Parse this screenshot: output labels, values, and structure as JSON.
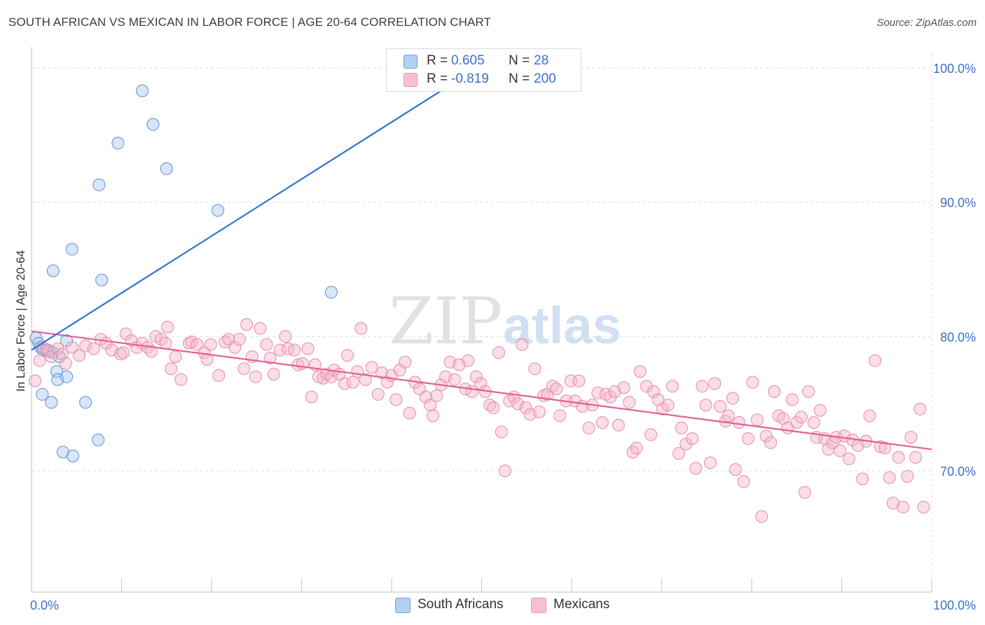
{
  "header": {
    "title": "SOUTH AFRICAN VS MEXICAN IN LABOR FORCE | AGE 20-64 CORRELATION CHART",
    "source": "Source: ZipAtlas.com"
  },
  "watermark": {
    "zip": "ZIP",
    "atlas": "atlas"
  },
  "legend_top": {
    "rows": [
      {
        "r_label": "R =",
        "r_value": "0.605",
        "n_label": "N =",
        "n_value": "28"
      },
      {
        "r_label": "R =",
        "r_value": "-0.819",
        "n_label": "N =",
        "n_value": "200"
      }
    ]
  },
  "legend_bottom": {
    "items": [
      {
        "label": "South Africans"
      },
      {
        "label": "Mexicans"
      }
    ]
  },
  "colors": {
    "south_africans_fill": "#aac8f0",
    "south_africans_stroke": "#5b8fd6",
    "south_africans_line": "#2f72d0",
    "mexicans_fill": "#f6b6ca",
    "mexicans_stroke": "#e58aa6",
    "mexicans_line": "#e0609a",
    "tick_label": "#3b6fcc",
    "grid": "#dddddd"
  },
  "chart_data": {
    "type": "scatter",
    "title": "SOUTH AFRICAN VS MEXICAN IN LABOR FORCE | AGE 20-64 CORRELATION CHART",
    "xlabel": "",
    "ylabel": "In Labor Force | Age 20-64",
    "xlim": [
      0,
      100
    ],
    "ylim": [
      60,
      102
    ],
    "x_tick_labels": [
      "0.0%",
      "100.0%"
    ],
    "y_ticks": [
      70,
      80,
      90,
      100
    ],
    "y_tick_labels": [
      "70.0%",
      "80.0%",
      "90.0%",
      "100.0%"
    ],
    "grid": true,
    "legend_position": "bottom",
    "series": [
      {
        "name": "South Africans",
        "points": [
          [
            0.5,
            79.9
          ],
          [
            0.8,
            79.5
          ],
          [
            1.0,
            79.2
          ],
          [
            1.3,
            79.0
          ],
          [
            1.6,
            79.0
          ],
          [
            2.0,
            78.9
          ],
          [
            2.4,
            78.8
          ],
          [
            3.1,
            78.5
          ],
          [
            3.9,
            79.7
          ],
          [
            1.2,
            75.7
          ],
          [
            2.2,
            75.1
          ],
          [
            2.8,
            77.4
          ],
          [
            2.9,
            76.8
          ],
          [
            3.9,
            77.0
          ],
          [
            3.5,
            71.4
          ],
          [
            4.6,
            71.1
          ],
          [
            6.0,
            75.1
          ],
          [
            7.4,
            72.3
          ],
          [
            2.4,
            84.9
          ],
          [
            4.5,
            86.5
          ],
          [
            7.8,
            84.2
          ],
          [
            7.5,
            91.3
          ],
          [
            9.6,
            94.4
          ],
          [
            12.3,
            98.3
          ],
          [
            13.5,
            95.8
          ],
          [
            15.0,
            92.5
          ],
          [
            20.7,
            89.4
          ],
          [
            33.3,
            83.3
          ]
        ],
        "trend": {
          "x": [
            0,
            49.5
          ],
          "y": [
            79.0,
            100.0
          ]
        },
        "r": 0.605,
        "n": 28
      },
      {
        "name": "Mexicans",
        "points": [
          [
            0.4,
            76.7
          ],
          [
            0.9,
            78.2
          ],
          [
            1.3,
            79.2
          ],
          [
            1.8,
            79.0
          ],
          [
            2.2,
            78.5
          ],
          [
            2.9,
            79.1
          ],
          [
            3.4,
            78.7
          ],
          [
            3.8,
            78.0
          ],
          [
            4.5,
            79.2
          ],
          [
            5.3,
            78.6
          ],
          [
            6.0,
            79.3
          ],
          [
            6.9,
            79.1
          ],
          [
            7.7,
            79.8
          ],
          [
            8.3,
            79.5
          ],
          [
            8.9,
            79.0
          ],
          [
            9.9,
            78.7
          ],
          [
            10.2,
            78.8
          ],
          [
            10.5,
            80.2
          ],
          [
            11.1,
            79.7
          ],
          [
            11.7,
            79.2
          ],
          [
            12.3,
            79.5
          ],
          [
            12.9,
            79.2
          ],
          [
            13.3,
            78.9
          ],
          [
            13.8,
            80.0
          ],
          [
            14.4,
            79.8
          ],
          [
            14.9,
            79.5
          ],
          [
            15.1,
            80.7
          ],
          [
            15.5,
            77.6
          ],
          [
            16.0,
            78.5
          ],
          [
            16.6,
            76.8
          ],
          [
            17.5,
            79.5
          ],
          [
            17.8,
            79.6
          ],
          [
            18.4,
            79.4
          ],
          [
            19.2,
            78.8
          ],
          [
            19.5,
            78.3
          ],
          [
            19.9,
            79.4
          ],
          [
            20.8,
            77.1
          ],
          [
            21.5,
            79.6
          ],
          [
            21.9,
            79.8
          ],
          [
            22.6,
            79.2
          ],
          [
            23.1,
            79.8
          ],
          [
            23.6,
            77.6
          ],
          [
            23.9,
            80.9
          ],
          [
            24.5,
            78.5
          ],
          [
            24.9,
            77.0
          ],
          [
            25.4,
            80.6
          ],
          [
            26.1,
            79.4
          ],
          [
            26.5,
            78.4
          ],
          [
            26.9,
            77.2
          ],
          [
            27.6,
            79.0
          ],
          [
            28.2,
            80.0
          ],
          [
            28.5,
            79.1
          ],
          [
            29.2,
            79.0
          ],
          [
            29.6,
            77.9
          ],
          [
            30.1,
            78.0
          ],
          [
            30.7,
            79.1
          ],
          [
            31.1,
            75.5
          ],
          [
            31.5,
            77.9
          ],
          [
            31.9,
            77.0
          ],
          [
            32.4,
            76.9
          ],
          [
            32.8,
            77.2
          ],
          [
            33.3,
            77.0
          ],
          [
            33.6,
            77.5
          ],
          [
            34.2,
            77.2
          ],
          [
            34.8,
            76.5
          ],
          [
            35.1,
            78.6
          ],
          [
            35.7,
            76.6
          ],
          [
            36.2,
            77.4
          ],
          [
            36.6,
            80.6
          ],
          [
            37.1,
            76.8
          ],
          [
            37.8,
            77.7
          ],
          [
            38.5,
            75.7
          ],
          [
            38.9,
            77.3
          ],
          [
            39.5,
            76.6
          ],
          [
            40.0,
            77.1
          ],
          [
            40.5,
            75.3
          ],
          [
            40.9,
            77.5
          ],
          [
            41.5,
            78.1
          ],
          [
            42.0,
            74.3
          ],
          [
            42.6,
            76.6
          ],
          [
            43.1,
            76.1
          ],
          [
            43.8,
            75.5
          ],
          [
            44.3,
            74.9
          ],
          [
            44.6,
            74.1
          ],
          [
            45.0,
            75.6
          ],
          [
            45.5,
            76.4
          ],
          [
            46.0,
            77.0
          ],
          [
            46.5,
            78.1
          ],
          [
            47.0,
            76.8
          ],
          [
            47.5,
            77.9
          ],
          [
            48.2,
            76.1
          ],
          [
            48.5,
            78.2
          ],
          [
            48.9,
            75.9
          ],
          [
            49.4,
            77.0
          ],
          [
            49.9,
            76.5
          ],
          [
            50.4,
            75.9
          ],
          [
            50.9,
            74.9
          ],
          [
            51.3,
            74.7
          ],
          [
            51.9,
            78.8
          ],
          [
            52.2,
            72.9
          ],
          [
            52.6,
            70.0
          ],
          [
            53.1,
            75.2
          ],
          [
            53.6,
            75.5
          ],
          [
            54.0,
            75.0
          ],
          [
            54.5,
            79.4
          ],
          [
            54.9,
            74.7
          ],
          [
            55.4,
            74.2
          ],
          [
            55.9,
            77.6
          ],
          [
            56.4,
            74.4
          ],
          [
            56.9,
            75.6
          ],
          [
            57.3,
            75.7
          ],
          [
            57.9,
            76.3
          ],
          [
            58.3,
            76.1
          ],
          [
            58.7,
            74.1
          ],
          [
            59.4,
            75.2
          ],
          [
            59.9,
            76.7
          ],
          [
            60.4,
            75.2
          ],
          [
            60.8,
            76.7
          ],
          [
            61.2,
            74.8
          ],
          [
            61.9,
            73.2
          ],
          [
            62.3,
            74.9
          ],
          [
            62.9,
            75.8
          ],
          [
            63.4,
            73.6
          ],
          [
            63.8,
            75.7
          ],
          [
            64.3,
            75.5
          ],
          [
            64.8,
            75.9
          ],
          [
            65.2,
            73.4
          ],
          [
            65.8,
            76.2
          ],
          [
            66.4,
            75.1
          ],
          [
            66.8,
            71.4
          ],
          [
            67.2,
            71.7
          ],
          [
            67.6,
            77.4
          ],
          [
            68.3,
            76.3
          ],
          [
            68.8,
            72.7
          ],
          [
            69.1,
            75.9
          ],
          [
            69.6,
            75.3
          ],
          [
            70.1,
            74.6
          ],
          [
            70.7,
            74.9
          ],
          [
            71.2,
            76.3
          ],
          [
            71.9,
            71.3
          ],
          [
            72.2,
            73.2
          ],
          [
            72.7,
            72.0
          ],
          [
            73.4,
            72.4
          ],
          [
            73.8,
            70.2
          ],
          [
            74.5,
            76.3
          ],
          [
            74.9,
            74.9
          ],
          [
            75.4,
            70.6
          ],
          [
            75.9,
            76.5
          ],
          [
            76.5,
            74.8
          ],
          [
            77.1,
            73.7
          ],
          [
            77.4,
            74.1
          ],
          [
            77.9,
            75.4
          ],
          [
            78.2,
            70.1
          ],
          [
            78.6,
            73.6
          ],
          [
            79.1,
            69.2
          ],
          [
            79.6,
            72.4
          ],
          [
            80.1,
            76.6
          ],
          [
            80.6,
            73.8
          ],
          [
            81.1,
            66.6
          ],
          [
            81.6,
            72.6
          ],
          [
            82.1,
            72.1
          ],
          [
            82.5,
            75.9
          ],
          [
            83.0,
            74.1
          ],
          [
            83.5,
            73.9
          ],
          [
            84.0,
            73.2
          ],
          [
            84.5,
            75.3
          ],
          [
            85.0,
            73.6
          ],
          [
            85.5,
            74.0
          ],
          [
            85.9,
            68.4
          ],
          [
            86.3,
            75.9
          ],
          [
            86.9,
            73.6
          ],
          [
            87.2,
            72.5
          ],
          [
            87.6,
            74.5
          ],
          [
            88.1,
            72.4
          ],
          [
            88.5,
            71.6
          ],
          [
            89.0,
            72.1
          ],
          [
            89.4,
            72.5
          ],
          [
            89.8,
            71.5
          ],
          [
            90.3,
            72.6
          ],
          [
            90.8,
            70.9
          ],
          [
            91.2,
            72.3
          ],
          [
            91.8,
            71.9
          ],
          [
            92.3,
            69.4
          ],
          [
            92.7,
            72.2
          ],
          [
            93.1,
            74.1
          ],
          [
            93.7,
            78.2
          ],
          [
            94.3,
            71.8
          ],
          [
            94.8,
            71.7
          ],
          [
            95.3,
            69.5
          ],
          [
            95.7,
            67.6
          ],
          [
            96.3,
            71.0
          ],
          [
            96.8,
            67.3
          ],
          [
            97.3,
            69.6
          ],
          [
            97.7,
            72.5
          ],
          [
            98.2,
            71.0
          ],
          [
            98.7,
            74.6
          ],
          [
            99.1,
            67.3
          ]
        ],
        "trend": {
          "x": [
            0,
            100
          ],
          "y": [
            80.4,
            71.6
          ]
        },
        "r": -0.819,
        "n": 200
      }
    ]
  }
}
